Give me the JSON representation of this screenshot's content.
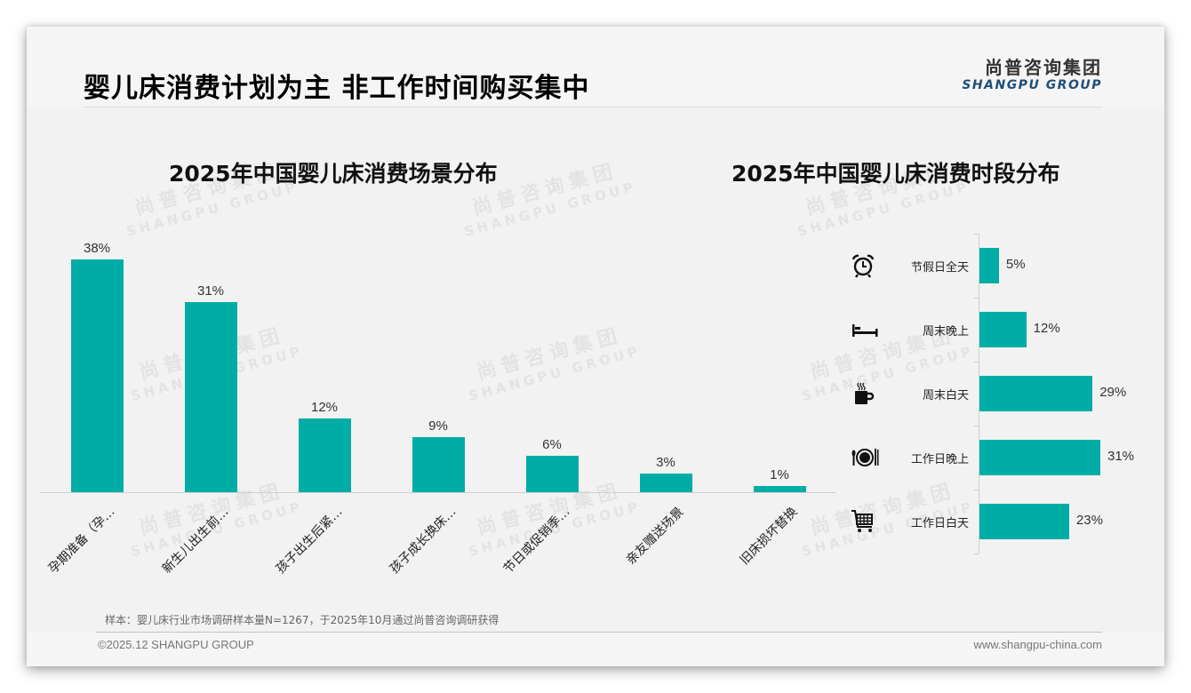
{
  "header": {
    "title": "婴儿床消费计划为主 非工作时间购买集中",
    "logo_cn": "尚普咨询集团",
    "logo_en": "SHANGPU GROUP"
  },
  "watermark": {
    "cn": "尚普咨询集团",
    "en": "SHANGPU GROUP"
  },
  "colors": {
    "bar": "#00ADA6",
    "background": "#F2F2F2",
    "logo_en": "#1F4E79"
  },
  "chart_data": [
    {
      "type": "bar",
      "title": "2025年中国婴儿床消费场景分布",
      "categories": [
        "孕期准备（孕…",
        "新生儿出生前…",
        "孩子出生后紧…",
        "孩子成长换床…",
        "节日或促销季…",
        "亲友赠送场景",
        "旧床损坏替换"
      ],
      "values": [
        38,
        31,
        12,
        9,
        6,
        3,
        1
      ],
      "value_labels": [
        "38%",
        "31%",
        "12%",
        "9%",
        "6%",
        "3%",
        "1%"
      ],
      "xlabel": "",
      "ylabel": "",
      "ylim": [
        0,
        40
      ],
      "grid": false,
      "legend": "none"
    },
    {
      "type": "bar",
      "orientation": "horizontal",
      "title": "2025年中国婴儿床消费时段分布",
      "categories": [
        "节假日全天",
        "周末晚上",
        "周末白天",
        "工作日晚上",
        "工作日白天"
      ],
      "icons": [
        "alarm-clock-icon",
        "bed-icon",
        "coffee-cup-icon",
        "plate-cutlery-icon",
        "shopping-cart-icon"
      ],
      "values": [
        5,
        12,
        29,
        31,
        23
      ],
      "value_labels": [
        "5%",
        "12%",
        "29%",
        "31%",
        "23%"
      ],
      "xlim": [
        0,
        40
      ],
      "grid": false,
      "legend": "none"
    }
  ],
  "note": "样本：婴儿床行业市场调研样本量N=1267，于2025年10月通过尚普咨询调研获得",
  "footer": {
    "copyright": "©2025.12 SHANGPU GROUP",
    "website": "www.shangpu-china.com"
  }
}
